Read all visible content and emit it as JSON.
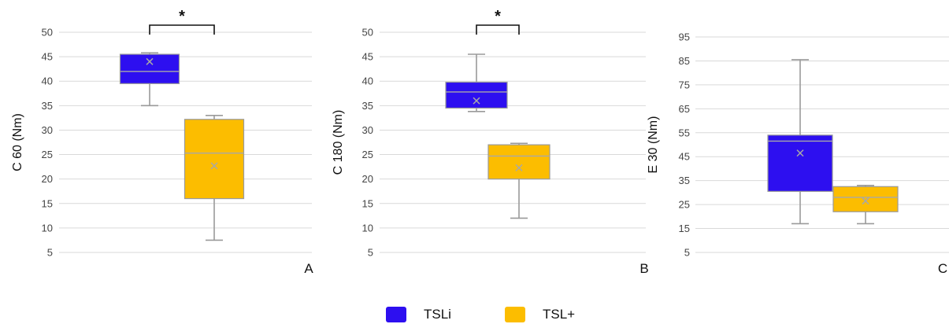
{
  "chart_data": [
    {
      "type": "box",
      "ylabel": "C 60 (Nm)",
      "panel_label": "A",
      "ylim": [
        5,
        50
      ],
      "yticks": [
        5,
        10,
        15,
        20,
        25,
        30,
        35,
        40,
        45,
        50
      ],
      "significance": "*",
      "series": [
        {
          "name": "TSLi",
          "min": 35,
          "q1": 39.5,
          "median": 42,
          "q3": 45.5,
          "max": 45.8,
          "mean": 44
        },
        {
          "name": "TSL+",
          "min": 7.5,
          "q1": 16,
          "median": 25.3,
          "q3": 32.2,
          "max": 33,
          "mean": 22.7
        }
      ]
    },
    {
      "type": "box",
      "ylabel": "C 180 (Nm)",
      "panel_label": "B",
      "ylim": [
        5,
        50
      ],
      "yticks": [
        5,
        10,
        15,
        20,
        25,
        30,
        35,
        40,
        45,
        50
      ],
      "significance": "*",
      "series": [
        {
          "name": "TSLi",
          "min": 33.8,
          "q1": 34.5,
          "median": 37.8,
          "q3": 39.8,
          "max": 45.5,
          "mean": 36
        },
        {
          "name": "TSL+",
          "min": 12,
          "q1": 20,
          "median": 24.7,
          "q3": 27,
          "max": 27.3,
          "mean": 22.3
        }
      ]
    },
    {
      "type": "box",
      "ylabel": "E 30 (Nm)",
      "panel_label": "C",
      "ylim": [
        5,
        95
      ],
      "yticks": [
        5,
        15,
        25,
        35,
        45,
        55,
        65,
        75,
        85,
        95
      ],
      "significance": "",
      "series": [
        {
          "name": "TSLi",
          "min": 17,
          "q1": 30.5,
          "median": 51.5,
          "q3": 54,
          "max": 85.5,
          "mean": 46.5
        },
        {
          "name": "TSL+",
          "min": 17,
          "q1": 22,
          "median": 28,
          "q3": 32.5,
          "max": 33,
          "mean": 26.5
        }
      ]
    }
  ],
  "colors": {
    "TSLi": "#2d0ff0",
    "TSL+": "#fcbd00",
    "whisker": "#9a9a9a",
    "grid": "#d9d9d9",
    "median": "#a8a8a8",
    "mean": "#a8a8a8"
  },
  "legend": [
    {
      "label": "TSLi",
      "color": "#2d0ff0"
    },
    {
      "label": "TSL+",
      "color": "#fcbd00"
    }
  ]
}
